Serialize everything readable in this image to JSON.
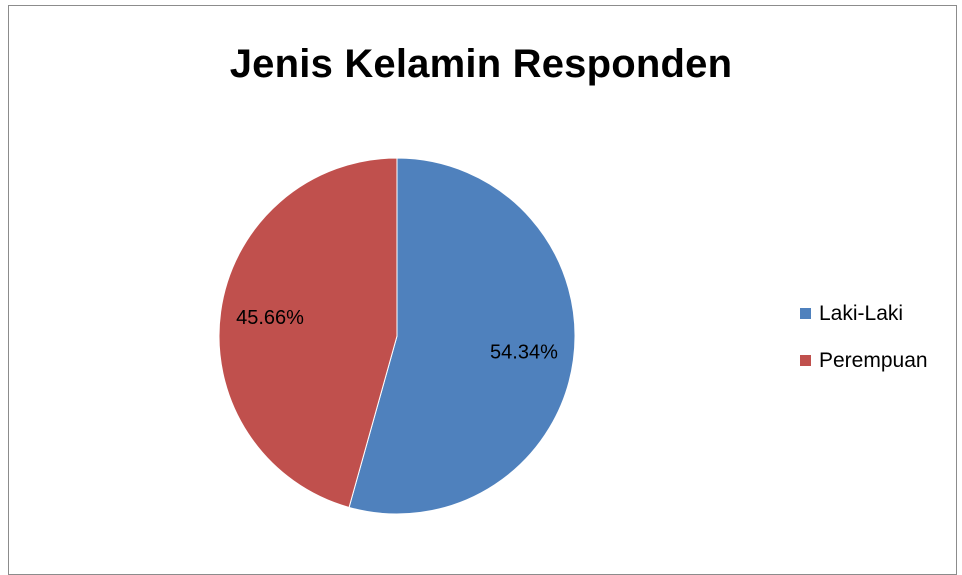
{
  "chart_data": {
    "type": "pie",
    "title": "Jenis Kelamin Responden",
    "categories": [
      "Laki-Laki",
      "Perempuan"
    ],
    "values": [
      54.34,
      45.66
    ],
    "data_labels": [
      "54.34%",
      "45.66%"
    ],
    "colors": [
      "#4f81bd",
      "#c0504d"
    ],
    "legend_position": "right",
    "start_angle_deg": 0,
    "direction": "clockwise"
  }
}
